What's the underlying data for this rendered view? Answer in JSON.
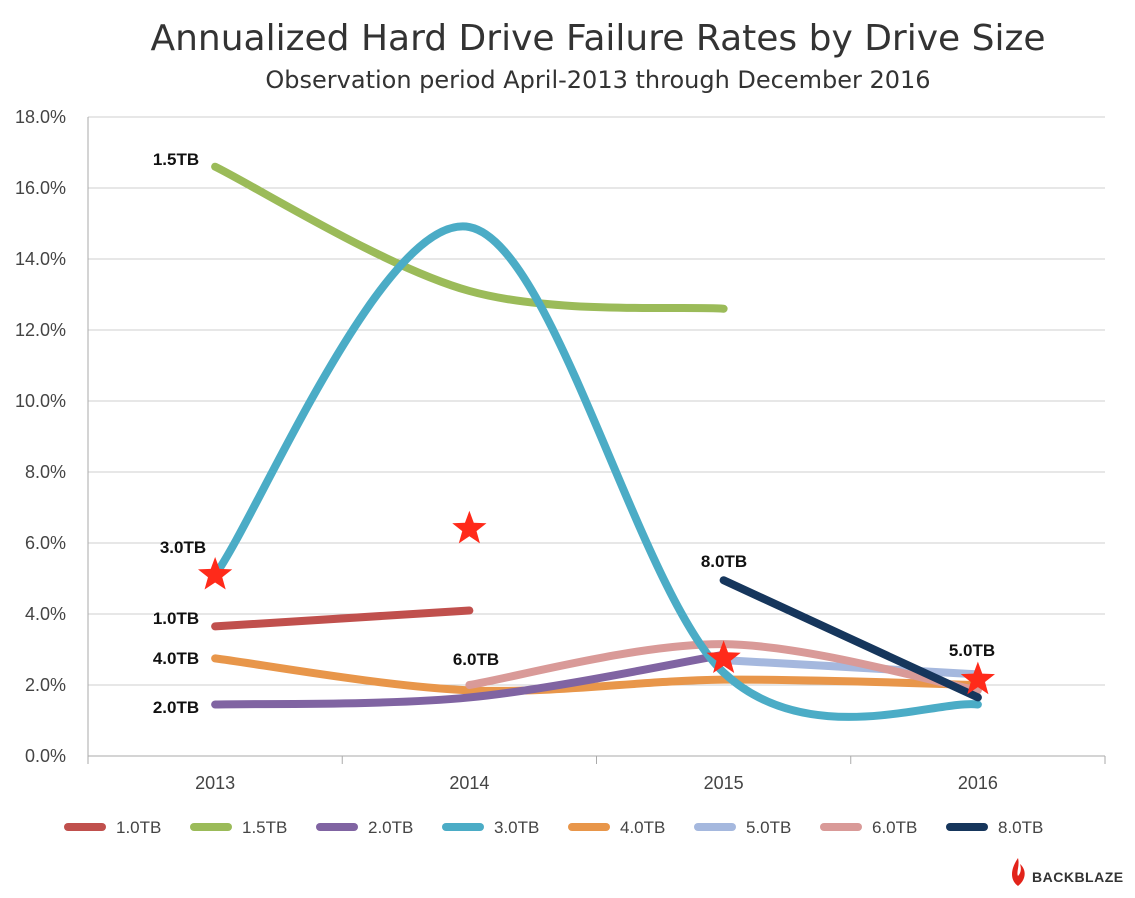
{
  "chart_data": {
    "type": "line",
    "title": "Annualized Hard Drive Failure Rates by Drive Size",
    "subtitle": "Observation period April-2013 through December 2016",
    "x": [
      2013,
      2014,
      2015,
      2016
    ],
    "categories": [
      "2013",
      "2014",
      "2015",
      "2016"
    ],
    "ylim": [
      0,
      18
    ],
    "yticks": [
      0,
      2,
      4,
      6,
      8,
      10,
      12,
      14,
      16,
      18
    ],
    "ytick_labels": [
      "0.0%",
      "2.0%",
      "4.0%",
      "6.0%",
      "8.0%",
      "10.0%",
      "12.0%",
      "14.0%",
      "16.0%",
      "18.0%"
    ],
    "grid": true,
    "legend_position": "bottom",
    "series": [
      {
        "name": "1.0TB",
        "label": "1.0TB",
        "color": "#c0504d",
        "x": [
          2013,
          2014
        ],
        "values": [
          3.65,
          4.1
        ]
      },
      {
        "name": "1.5TB",
        "label": "1.5TB",
        "color": "#9bbb59",
        "x": [
          2013,
          2014,
          2015
        ],
        "values": [
          16.6,
          13.1,
          12.6
        ]
      },
      {
        "name": "2.0TB",
        "label": "2.0TB",
        "color": "#8064a2",
        "x": [
          2013,
          2014,
          2015
        ],
        "values": [
          1.45,
          1.65,
          2.85
        ]
      },
      {
        "name": "3.0TB",
        "label": "3.0TB",
        "color": "#4bacc6",
        "x": [
          2013,
          2014,
          2015,
          2016
        ],
        "values": [
          5.1,
          14.9,
          2.35,
          1.45
        ]
      },
      {
        "name": "4.0TB",
        "label": "4.0TB",
        "color": "#e8964a",
        "x": [
          2013,
          2014,
          2015,
          2016
        ],
        "values": [
          2.75,
          1.85,
          2.15,
          2.0
        ]
      },
      {
        "name": "5.0TB",
        "label": "5.0TB",
        "color": "#a5b8de",
        "x": [
          2015,
          2016
        ],
        "values": [
          2.7,
          2.3
        ]
      },
      {
        "name": "6.0TB",
        "label": "6.0TB",
        "color": "#d99a98",
        "x": [
          2014,
          2015,
          2016
        ],
        "values": [
          2.0,
          3.15,
          1.85
        ]
      },
      {
        "name": "8.0TB",
        "label": "8.0TB",
        "color": "#16365c",
        "x": [
          2015,
          2016
        ],
        "values": [
          4.95,
          1.65
        ]
      }
    ],
    "annotations": [
      {
        "type": "star",
        "x": 2013,
        "y": 5.1,
        "color": "#ff2a1a"
      },
      {
        "type": "star",
        "x": 2014,
        "y": 6.4,
        "color": "#ff2a1a"
      },
      {
        "type": "star",
        "x": 2015,
        "y": 2.75,
        "color": "#ff2a1a"
      },
      {
        "type": "star",
        "x": 2016,
        "y": 2.15,
        "color": "#ff2a1a"
      }
    ]
  },
  "brand": {
    "name": "BACKBLAZE",
    "color": "#e2231a",
    "icon": "flame-icon"
  }
}
